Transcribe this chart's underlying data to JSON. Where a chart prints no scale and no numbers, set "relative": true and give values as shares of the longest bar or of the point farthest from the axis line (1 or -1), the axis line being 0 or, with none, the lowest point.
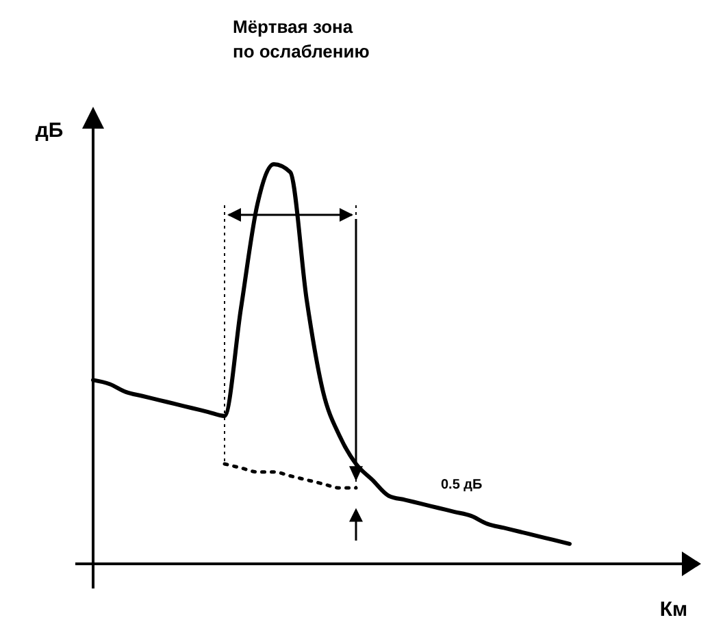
{
  "chart_data": {
    "type": "line",
    "relative": true,
    "xlabel": "Км",
    "ylabel": "дБ",
    "categories": [
      null,
      null,
      null,
      null,
      null,
      null,
      null,
      null,
      null,
      null,
      null,
      null,
      null,
      null,
      null,
      null,
      null,
      null,
      null,
      null,
      null,
      null,
      null,
      null,
      null,
      null,
      null,
      null,
      null,
      null
    ],
    "series": [
      {
        "color": "#000000",
        "line_style": "solid",
        "values": [
          0.46,
          0.45,
          0.43,
          0.42,
          0.41,
          0.4,
          0.39,
          0.38,
          0.37,
          0.64,
          0.9,
          1.0,
          0.98,
          0.66,
          0.43,
          0.32,
          0.25,
          0.21,
          0.17,
          0.16,
          0.15,
          0.14,
          0.13,
          0.12,
          0.1,
          0.09,
          0.08,
          0.07,
          0.06,
          0.05
        ]
      },
      {
        "color": "#000000",
        "line_style": "dotted",
        "values": [
          null,
          null,
          null,
          null,
          null,
          null,
          null,
          null,
          0.25,
          0.24,
          0.23,
          0.23,
          0.22,
          0.21,
          0.2,
          0.19,
          0.19,
          null,
          null,
          null,
          null,
          null,
          null,
          null,
          null,
          null,
          null,
          null,
          null,
          null
        ]
      }
    ],
    "annotations": [
      "Мёртвая зона по ослаблению",
      "0.5 дБ"
    ]
  }
}
